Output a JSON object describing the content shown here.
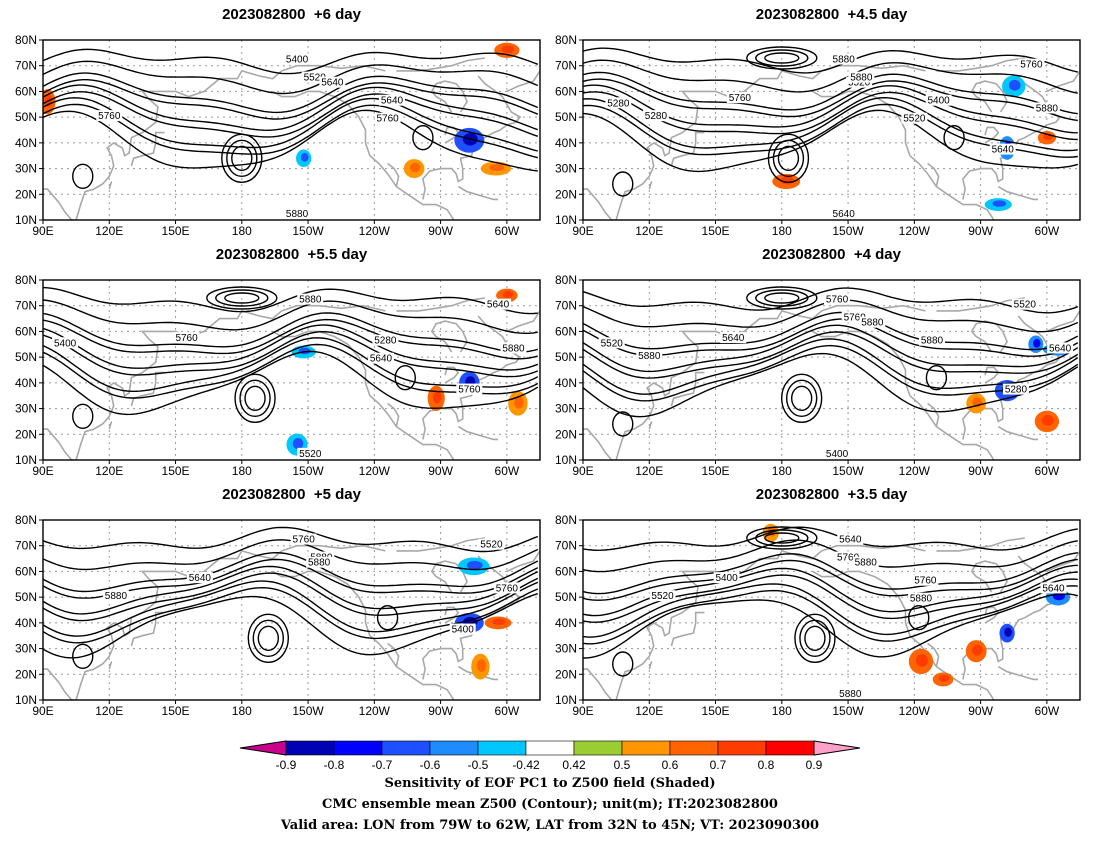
{
  "panels": [
    {
      "title": "2023082800  +6 day",
      "contour_labels": [
        "5400",
        "5520",
        "5640",
        "5760",
        "5640",
        "5760",
        "5880"
      ],
      "shading": [
        {
          "lon": 283,
          "lat": 41,
          "value": -0.7
        },
        {
          "lon": 208,
          "lat": 34,
          "value": -0.5
        },
        {
          "lon": 295,
          "lat": 30,
          "value": 0.5
        },
        {
          "lon": 258,
          "lat": 30,
          "value": 0.5
        },
        {
          "lon": 300,
          "lat": 76,
          "value": 0.6
        },
        {
          "lon": 92,
          "lat": 56,
          "value": 0.6
        }
      ]
    },
    {
      "title": "2023082800  +4.5 day",
      "contour_labels": [
        "5520",
        "5280",
        "5400",
        "5520",
        "5640",
        "5280",
        "5640",
        "5760",
        "5760",
        "5880",
        "5880",
        "5880"
      ],
      "shading": [
        {
          "lon": 282,
          "lat": 38,
          "value": -0.6
        },
        {
          "lon": 278,
          "lat": 16,
          "value": -0.5
        },
        {
          "lon": 300,
          "lat": 42,
          "value": 0.6
        },
        {
          "lon": 182,
          "lat": 25,
          "value": 0.6
        },
        {
          "lon": 285,
          "lat": 62,
          "value": -0.5
        }
      ]
    },
    {
      "title": "2023082800  +5.5 day",
      "contour_labels": [
        "5280",
        "5640",
        "5520",
        "5400",
        "5760",
        "5640",
        "5760",
        "5880",
        "5880"
      ],
      "shading": [
        {
          "lon": 283,
          "lat": 40,
          "value": -0.7
        },
        {
          "lon": 205,
          "lat": 16,
          "value": -0.5
        },
        {
          "lon": 208,
          "lat": 52,
          "value": -0.5
        },
        {
          "lon": 268,
          "lat": 34,
          "value": 0.6
        },
        {
          "lon": 300,
          "lat": 74,
          "value": 0.6
        },
        {
          "lon": 305,
          "lat": 32,
          "value": 0.5
        }
      ]
    },
    {
      "title": "2023082800  +4 day",
      "contour_labels": [
        "5400",
        "5520",
        "5280",
        "5520",
        "5640",
        "5640",
        "5760",
        "5760",
        "5880",
        "5880",
        "5880"
      ],
      "shading": [
        {
          "lon": 282,
          "lat": 37,
          "value": -0.7
        },
        {
          "lon": 295,
          "lat": 55,
          "value": -0.6
        },
        {
          "lon": 305,
          "lat": 53,
          "value": -0.6
        },
        {
          "lon": 300,
          "lat": 25,
          "value": 0.6
        },
        {
          "lon": 268,
          "lat": 32,
          "value": 0.5
        }
      ]
    },
    {
      "title": "2023082800  +5 day",
      "contour_labels": [
        "5400",
        "5520",
        "5640",
        "5760",
        "5760",
        "5880",
        "5880",
        "5880"
      ],
      "shading": [
        {
          "lon": 283,
          "lat": 40,
          "value": -0.7
        },
        {
          "lon": 296,
          "lat": 40,
          "value": 0.6
        },
        {
          "lon": 288,
          "lat": 23,
          "value": 0.5
        },
        {
          "lon": 285,
          "lat": 62,
          "value": -0.5
        }
      ]
    },
    {
      "title": "2023082800  +3.5 day",
      "contour_labels": [
        "5400",
        "5640",
        "5640",
        "5760",
        "5880",
        "5520",
        "5760",
        "5880",
        "5880"
      ],
      "shading": [
        {
          "lon": 282,
          "lat": 36,
          "value": -0.7
        },
        {
          "lon": 268,
          "lat": 29,
          "value": 0.6
        },
        {
          "lon": 243,
          "lat": 25,
          "value": 0.6
        },
        {
          "lon": 253,
          "lat": 18,
          "value": 0.6
        },
        {
          "lon": 175,
          "lat": 75,
          "value": 0.5
        },
        {
          "lon": 305,
          "lat": 50,
          "value": -0.6
        }
      ]
    }
  ],
  "axes": {
    "lat_labels": [
      "80N",
      "70N",
      "60N",
      "50N",
      "40N",
      "30N",
      "20N",
      "10N"
    ],
    "lon_labels": [
      "90E",
      "120E",
      "150E",
      "180",
      "150W",
      "120W",
      "90W",
      "60W"
    ],
    "lon_range": [
      90,
      315
    ],
    "lat_range": [
      10,
      80
    ]
  },
  "colorbar": {
    "ticks": [
      "-0.9",
      "-0.8",
      "-0.7",
      "-0.6",
      "-0.5",
      "-0.42",
      "0.42",
      "0.5",
      "0.6",
      "0.7",
      "0.8",
      "0.9"
    ],
    "colors": [
      "#c8008c",
      "#0000b4",
      "#0000ff",
      "#1e50ff",
      "#1e8cff",
      "#00c8ff",
      "#ffffff",
      "#9acd32",
      "#ff9600",
      "#ff6400",
      "#ff3c00",
      "#ff0000",
      "#ffa0c8"
    ]
  },
  "caption": {
    "line1": "Sensitivity of EOF PC1 to Z500 field (Shaded)",
    "line2": "CMC ensemble mean Z500 (Contour); unit(m); IT:2023082800",
    "line3": "Valid area: LON from 79W to 62W, LAT from 32N to 45N; VT: 2023090300"
  }
}
